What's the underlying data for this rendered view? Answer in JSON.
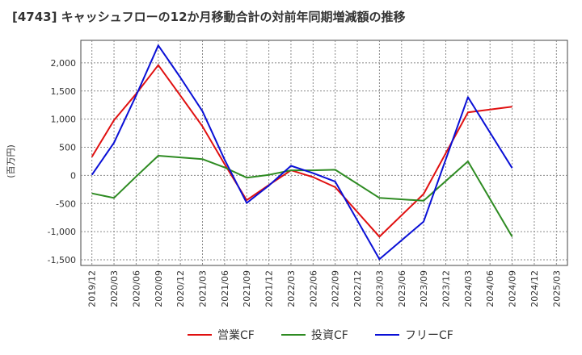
{
  "chart_data": {
    "type": "line",
    "title": "[4743]  キャッシュフローの12か月移動合計の対前年同期増減額の推移",
    "ylabel": "(百万円)",
    "xlabel": "",
    "ylim": [
      -1600,
      2400
    ],
    "yticks": [
      2000,
      1500,
      1000,
      500,
      0,
      -500,
      -1000,
      -1500
    ],
    "ytick_labels": [
      "2,000",
      "1,500",
      "1,000",
      "500",
      "0",
      "-500",
      "-1,000",
      "-1,500"
    ],
    "x": [
      "2019/12",
      "2020/03",
      "2020/06",
      "2020/09",
      "2020/12",
      "2021/03",
      "2021/06",
      "2021/09",
      "2021/12",
      "2022/03",
      "2022/06",
      "2022/09",
      "2022/12",
      "2023/03",
      "2023/06",
      "2023/09",
      "2023/12",
      "2024/03",
      "2024/06",
      "2024/09",
      "2024/12",
      "2025/03"
    ],
    "grid": true,
    "legend_position": "bottom",
    "series": [
      {
        "name": "営業CF",
        "color": "#e01010",
        "values": [
          330,
          980,
          1450,
          1960,
          1420,
          870,
          200,
          -440,
          -170,
          90,
          -30,
          -210,
          null,
          -1090,
          null,
          -330,
          null,
          1120,
          null,
          1220,
          null,
          null
        ]
      },
      {
        "name": "投資CF",
        "color": "#2e8b22",
        "values": [
          -320,
          -400,
          -20,
          350,
          320,
          290,
          140,
          -40,
          10,
          90,
          90,
          100,
          null,
          -400,
          null,
          -450,
          null,
          250,
          null,
          -1090,
          null,
          null
        ]
      },
      {
        "name": "フリーCF",
        "color": "#0a10d6",
        "values": [
          10,
          580,
          1420,
          2310,
          1740,
          1140,
          280,
          -490,
          -180,
          170,
          40,
          -110,
          null,
          -1490,
          null,
          -820,
          null,
          1390,
          null,
          130,
          null,
          null
        ]
      }
    ]
  }
}
